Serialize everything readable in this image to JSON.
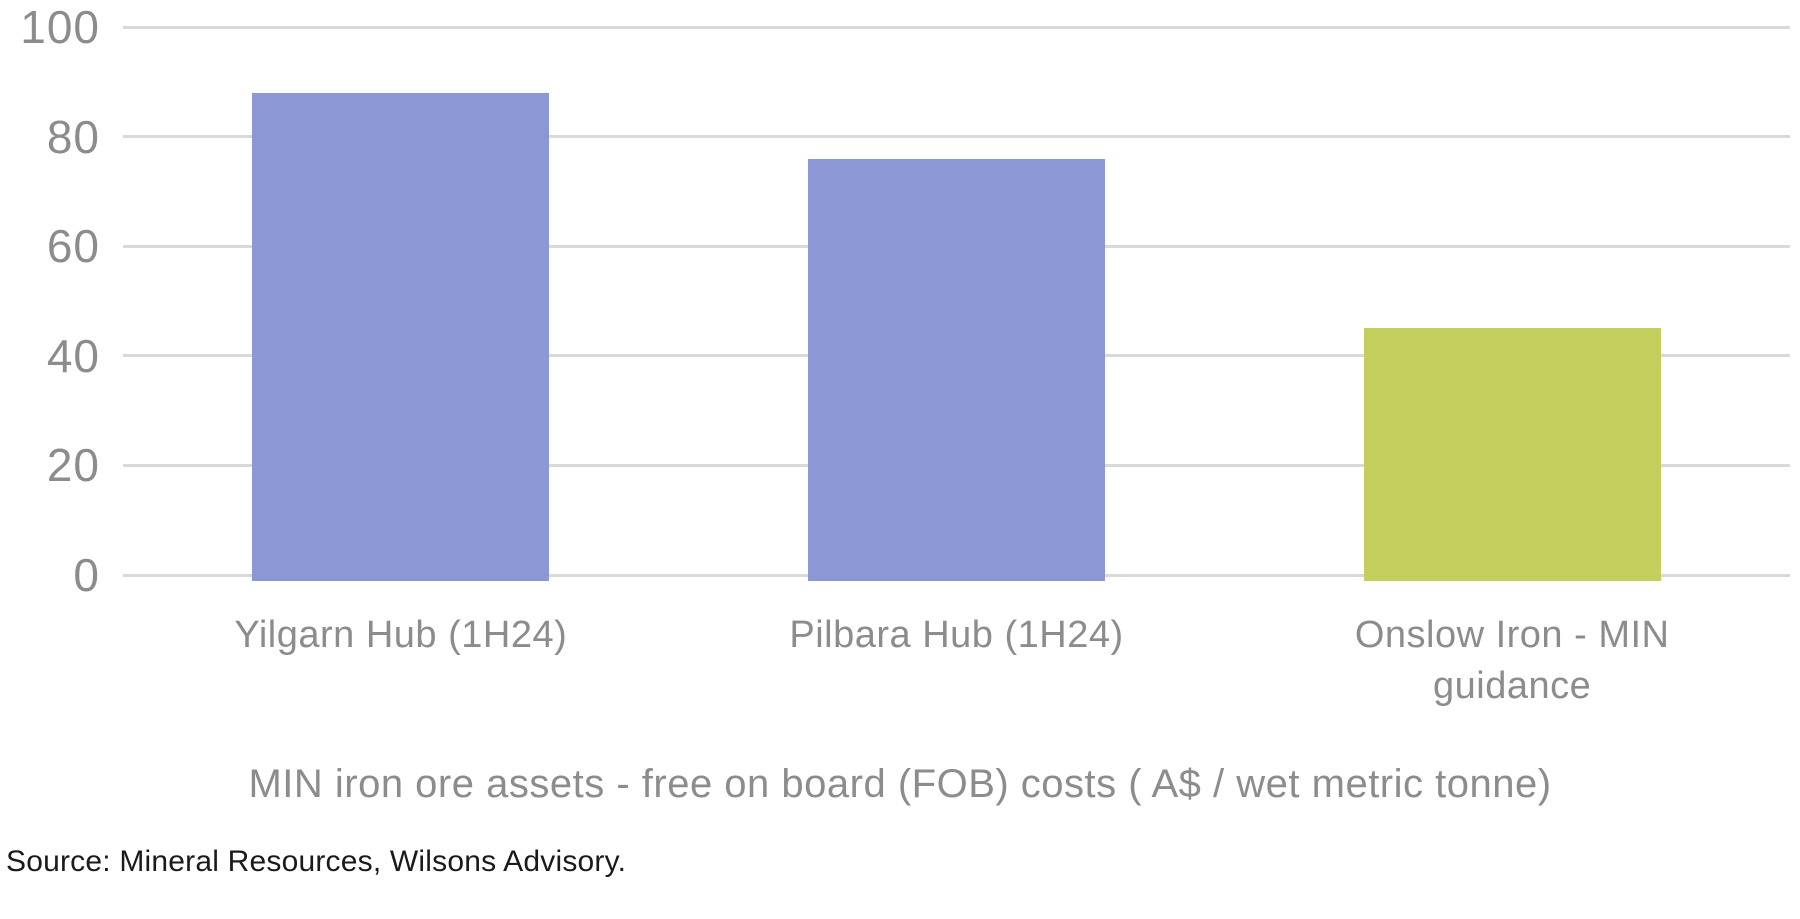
{
  "chart_data": {
    "type": "bar",
    "title": "MIN iron ore assets - free on board (FOB) costs ( A$ / wet metric tonne)",
    "categories": [
      "Yilgarn Hub (1H24)",
      "Pilbara Hub (1H24)",
      "Onslow Iron - MIN guidance"
    ],
    "values": [
      88,
      76,
      45
    ],
    "bar_colors": [
      "#8C98D6",
      "#8C98D6",
      "#C4CE5C"
    ],
    "ylim": [
      0,
      100
    ],
    "yticks": [
      0,
      20,
      40,
      60,
      80,
      100
    ],
    "xlabel": "",
    "ylabel": "",
    "grid": "horizontal",
    "legend": "none"
  },
  "source_note": "Source: Mineral Resources, Wilsons Advisory.",
  "colors": {
    "bar_default": "#8C98D6",
    "bar_highlight": "#C4CE5C",
    "gridline": "#D9D9D9",
    "axis_text": "#8C8C8C",
    "source_text": "#1A1A1A",
    "background": "#FFFFFF"
  }
}
